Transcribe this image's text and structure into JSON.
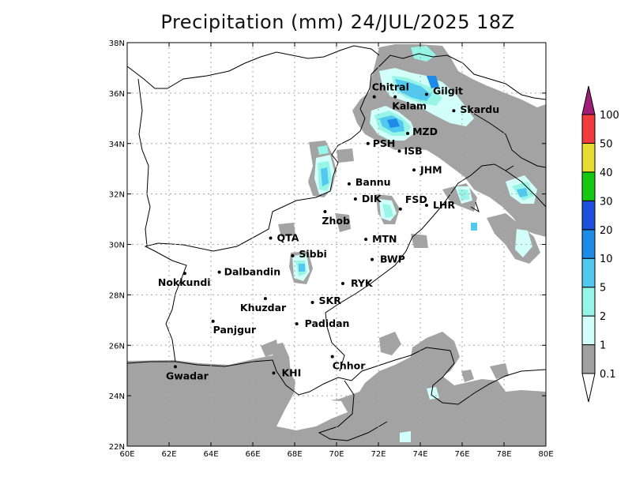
{
  "title": "Precipitation (mm) 24/JUL/2025 18Z",
  "map": {
    "lon_min": 60,
    "lon_max": 80,
    "lat_min": 22,
    "lat_max": 38,
    "x_ticks": [
      "60E",
      "62E",
      "64E",
      "66E",
      "68E",
      "70E",
      "72E",
      "74E",
      "76E",
      "78E",
      "80E"
    ],
    "y_ticks": [
      "22N",
      "24N",
      "26N",
      "28N",
      "30N",
      "32N",
      "34N",
      "36N",
      "38N"
    ],
    "gridlines": true
  },
  "colorbar": {
    "labels": [
      "0.1",
      "1",
      "2",
      "5",
      "10",
      "20",
      "30",
      "40",
      "50",
      "100"
    ],
    "colors": [
      "#a0a0a0",
      "#d2fffa",
      "#96f5e6",
      "#50c8f0",
      "#1e8ce6",
      "#1e50dc",
      "#14c814",
      "#e6dc32",
      "#f03c3c",
      "#a01e78"
    ]
  },
  "cities": [
    {
      "name": "Chitral",
      "lon": 71.8,
      "lat": 35.85
    },
    {
      "name": "Gilgit",
      "lon": 74.3,
      "lat": 35.95
    },
    {
      "name": "Kalam",
      "lon": 72.8,
      "lat": 35.85
    },
    {
      "name": "Skardu",
      "lon": 75.6,
      "lat": 35.3
    },
    {
      "name": "MZD",
      "lon": 73.4,
      "lat": 34.4
    },
    {
      "name": "PSH",
      "lon": 71.5,
      "lat": 34.0
    },
    {
      "name": "ISB",
      "lon": 73.0,
      "lat": 33.7
    },
    {
      "name": "JHM",
      "lon": 73.7,
      "lat": 32.95
    },
    {
      "name": "Bannu",
      "lon": 70.6,
      "lat": 32.4
    },
    {
      "name": "DIK",
      "lon": 70.9,
      "lat": 31.8
    },
    {
      "name": "FSD",
      "lon": 73.05,
      "lat": 31.4
    },
    {
      "name": "LHR",
      "lon": 74.3,
      "lat": 31.55
    },
    {
      "name": "Zhob",
      "lon": 69.45,
      "lat": 31.3
    },
    {
      "name": "QTA",
      "lon": 66.85,
      "lat": 30.25
    },
    {
      "name": "MTN",
      "lon": 71.4,
      "lat": 30.2
    },
    {
      "name": "Sibbi",
      "lon": 67.9,
      "lat": 29.55
    },
    {
      "name": "BWP",
      "lon": 71.7,
      "lat": 29.4
    },
    {
      "name": "Dalbandin",
      "lon": 64.4,
      "lat": 28.9
    },
    {
      "name": "Nokkundi",
      "lon": 62.75,
      "lat": 28.85
    },
    {
      "name": "RYK",
      "lon": 70.3,
      "lat": 28.45
    },
    {
      "name": "Khuzdar",
      "lon": 66.6,
      "lat": 27.85
    },
    {
      "name": "SKR",
      "lon": 68.85,
      "lat": 27.7
    },
    {
      "name": "Panjgur",
      "lon": 64.1,
      "lat": 26.95
    },
    {
      "name": "Padidan",
      "lon": 68.1,
      "lat": 26.85
    },
    {
      "name": "Chhor",
      "lon": 69.8,
      "lat": 25.55
    },
    {
      "name": "KHI",
      "lon": 67.0,
      "lat": 24.9
    },
    {
      "name": "Gwadar",
      "lon": 62.3,
      "lat": 25.15
    }
  ]
}
